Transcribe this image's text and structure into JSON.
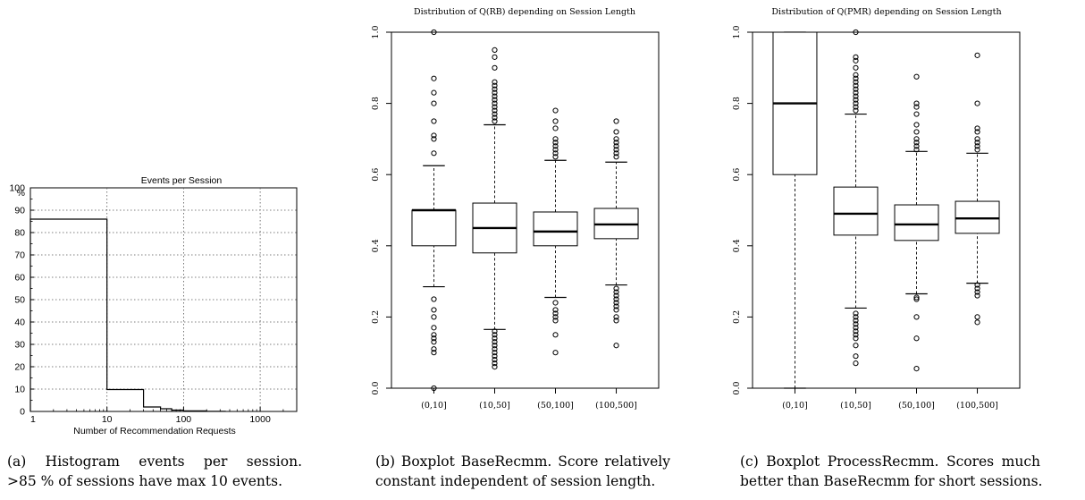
{
  "chart_data": [
    {
      "type": "histogram",
      "title": "Events per Session",
      "xlabel": "Number of Recommendation Requests",
      "ylabel": "%",
      "x_scale": "log",
      "xlim": [
        1,
        3000
      ],
      "ylim": [
        0,
        100
      ],
      "x_ticks": [
        {
          "value": 1,
          "label": "1"
        },
        {
          "value": 10,
          "label": "10"
        },
        {
          "value": 100,
          "label": "100"
        },
        {
          "value": 1000,
          "label": "1000"
        }
      ],
      "y_ticks": [
        {
          "value": 0,
          "label": "0"
        },
        {
          "value": 10,
          "label": "10"
        },
        {
          "value": 20,
          "label": "20"
        },
        {
          "value": 30,
          "label": "30"
        },
        {
          "value": 40,
          "label": "40"
        },
        {
          "value": 50,
          "label": "50"
        },
        {
          "value": 60,
          "label": "60"
        },
        {
          "value": 70,
          "label": "70"
        },
        {
          "value": 80,
          "label": "80"
        },
        {
          "value": 90,
          "label": "90"
        },
        {
          "value": 100,
          "label": "100"
        }
      ],
      "grid": true,
      "bins": [
        {
          "x0": 1,
          "x1": 10,
          "value": 86
        },
        {
          "x0": 10,
          "x1": 30,
          "value": 9.8
        },
        {
          "x0": 30,
          "x1": 50,
          "value": 2
        },
        {
          "x0": 50,
          "x1": 70,
          "value": 1.2
        },
        {
          "x0": 70,
          "x1": 100,
          "value": 0.6
        },
        {
          "x0": 100,
          "x1": 200,
          "value": 0.25
        },
        {
          "x0": 200,
          "x1": 350,
          "value": 0.08
        }
      ]
    },
    {
      "type": "boxplot",
      "title": "Distribution of Q(RB) depending on Session Length",
      "ylim": [
        0,
        1
      ],
      "y_ticks": [
        {
          "value": 0.0,
          "label": "0.0"
        },
        {
          "value": 0.2,
          "label": "0.2"
        },
        {
          "value": 0.4,
          "label": "0.4"
        },
        {
          "value": 0.6,
          "label": "0.6"
        },
        {
          "value": 0.8,
          "label": "0.8"
        },
        {
          "value": 1.0,
          "label": "1.0"
        }
      ],
      "categories": [
        "(0,10]",
        "(10,50]",
        "(50,100]",
        "(100,500]"
      ],
      "boxes": [
        {
          "whisker_low": 0.285,
          "q1": 0.4,
          "median": 0.5,
          "q3": 0.5,
          "whisker_high": 0.625,
          "outliers": [
            0.0,
            0.1,
            0.11,
            0.13,
            0.14,
            0.15,
            0.17,
            0.2,
            0.22,
            0.25,
            0.66,
            0.7,
            0.71,
            0.75,
            0.8,
            0.83,
            0.87,
            1.0
          ]
        },
        {
          "whisker_low": 0.165,
          "q1": 0.38,
          "median": 0.45,
          "q3": 0.52,
          "whisker_high": 0.74,
          "outliers": [
            0.06,
            0.07,
            0.08,
            0.09,
            0.1,
            0.11,
            0.12,
            0.13,
            0.14,
            0.15,
            0.16,
            0.75,
            0.76,
            0.77,
            0.78,
            0.79,
            0.8,
            0.81,
            0.82,
            0.83,
            0.84,
            0.85,
            0.86,
            0.9,
            0.93,
            0.95
          ]
        },
        {
          "whisker_low": 0.255,
          "q1": 0.4,
          "median": 0.44,
          "q3": 0.495,
          "whisker_high": 0.64,
          "outliers": [
            0.1,
            0.15,
            0.19,
            0.2,
            0.21,
            0.22,
            0.24,
            0.65,
            0.66,
            0.67,
            0.68,
            0.69,
            0.7,
            0.73,
            0.75,
            0.78
          ]
        },
        {
          "whisker_low": 0.29,
          "q1": 0.42,
          "median": 0.46,
          "q3": 0.505,
          "whisker_high": 0.635,
          "outliers": [
            0.12,
            0.19,
            0.2,
            0.22,
            0.23,
            0.24,
            0.25,
            0.26,
            0.27,
            0.28,
            0.65,
            0.66,
            0.67,
            0.68,
            0.69,
            0.7,
            0.72,
            0.75
          ]
        }
      ]
    },
    {
      "type": "boxplot",
      "title": "Distribution of Q(PMR) depending on Session Length",
      "ylim": [
        0,
        1
      ],
      "y_ticks": [
        {
          "value": 0.0,
          "label": "0.0"
        },
        {
          "value": 0.2,
          "label": "0.2"
        },
        {
          "value": 0.4,
          "label": "0.4"
        },
        {
          "value": 0.6,
          "label": "0.6"
        },
        {
          "value": 0.8,
          "label": "0.8"
        },
        {
          "value": 1.0,
          "label": "1.0"
        }
      ],
      "categories": [
        "(0,10]",
        "(10,50]",
        "(50,100]",
        "(100,500]"
      ],
      "boxes": [
        {
          "whisker_low": 0.0,
          "q1": 0.6,
          "median": 0.8,
          "q3": 1.0,
          "whisker_high": 1.0,
          "outliers": []
        },
        {
          "whisker_low": 0.225,
          "q1": 0.43,
          "median": 0.49,
          "q3": 0.565,
          "whisker_high": 0.77,
          "outliers": [
            0.07,
            0.09,
            0.12,
            0.14,
            0.15,
            0.16,
            0.17,
            0.18,
            0.19,
            0.2,
            0.21,
            0.78,
            0.79,
            0.8,
            0.81,
            0.82,
            0.83,
            0.84,
            0.85,
            0.86,
            0.87,
            0.88,
            0.9,
            0.92,
            0.93,
            1.0
          ]
        },
        {
          "whisker_low": 0.265,
          "q1": 0.415,
          "median": 0.46,
          "q3": 0.515,
          "whisker_high": 0.665,
          "outliers": [
            0.055,
            0.14,
            0.2,
            0.25,
            0.255,
            0.67,
            0.68,
            0.69,
            0.7,
            0.72,
            0.74,
            0.77,
            0.79,
            0.8,
            0.875
          ]
        },
        {
          "whisker_low": 0.295,
          "q1": 0.435,
          "median": 0.477,
          "q3": 0.525,
          "whisker_high": 0.66,
          "outliers": [
            0.185,
            0.2,
            0.26,
            0.27,
            0.28,
            0.29,
            0.67,
            0.68,
            0.69,
            0.7,
            0.72,
            0.73,
            0.8,
            0.935
          ]
        }
      ]
    }
  ],
  "captions": [
    {
      "line1": "(a)  Histogram  events  per  session.",
      "line2": ">85 % of sessions have max 10 events."
    },
    {
      "line1": "(b) Boxplot BaseRecmm. Score relatively",
      "line2": "constant independent of session length."
    },
    {
      "line1": "(c)  Boxplot  ProcessRecmm.  Scores  much",
      "line2": "better than BaseRecmm for short sessions."
    }
  ]
}
